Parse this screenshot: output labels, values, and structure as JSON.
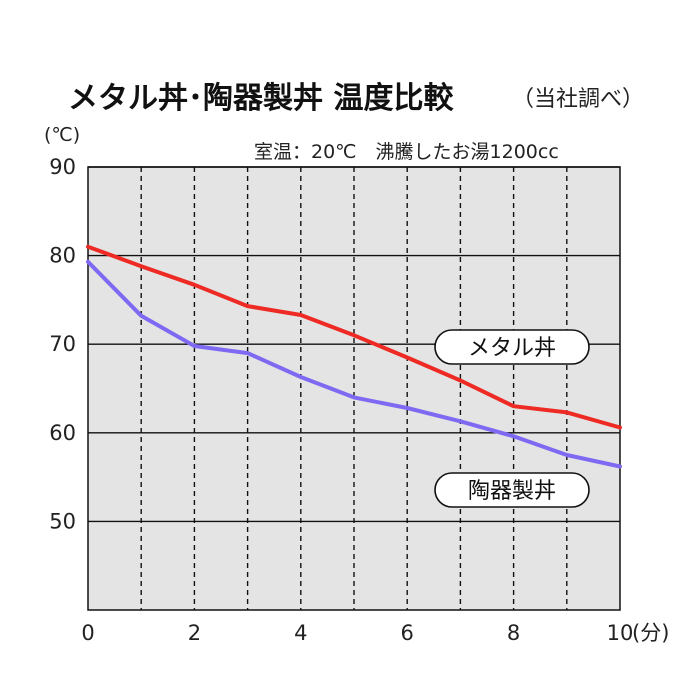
{
  "chart_data": {
    "type": "line",
    "title": "メタル丼･陶器製丼 温度比較",
    "subtitle": "（当社調べ）",
    "annotation": "室温：20℃　沸騰したお湯1200cc",
    "ylabel": "(℃)",
    "xlabel": "(分)",
    "xlim": [
      0,
      10
    ],
    "ylim": [
      40,
      90
    ],
    "x_ticks": [
      0,
      2,
      4,
      6,
      8,
      10
    ],
    "y_ticks": [
      50,
      60,
      70,
      80,
      90
    ],
    "x_tick_labels": [
      "0",
      "2",
      "4",
      "6",
      "8",
      "10"
    ],
    "y_tick_labels": [
      "50",
      "60",
      "70",
      "80",
      "90"
    ],
    "grid": true,
    "background_color": "#e4e4e4",
    "x": [
      0,
      1,
      2,
      3,
      4,
      5,
      6,
      7,
      8,
      9,
      10
    ],
    "series": [
      {
        "name": "メタル丼",
        "color": "#ee2a24",
        "values": [
          81,
          78.8,
          76.7,
          74.3,
          73.3,
          71,
          68.5,
          65.9,
          63,
          62.3,
          60.6
        ]
      },
      {
        "name": "陶器製丼",
        "color": "#7e6af2",
        "values": [
          79.3,
          73.2,
          69.8,
          69,
          66.3,
          64,
          62.8,
          61.3,
          59.6,
          57.5,
          56.2
        ]
      }
    ]
  }
}
